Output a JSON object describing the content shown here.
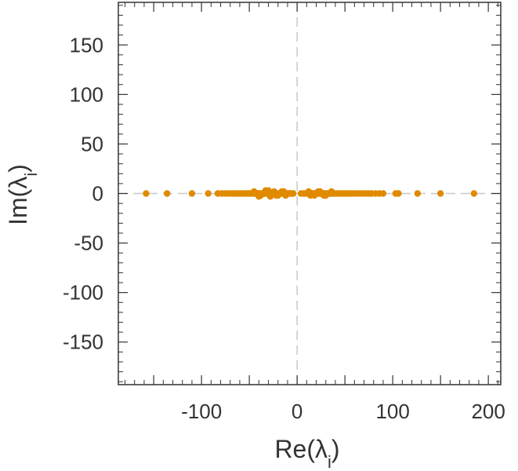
{
  "chart_data": {
    "type": "scatter",
    "xlabel": "Re(λi)",
    "ylabel": "Im(λi)",
    "xlim": [
      -187,
      213
    ],
    "ylim": [
      -193,
      193
    ],
    "xticks": [
      -100,
      0,
      100,
      200
    ],
    "yticks": [
      150,
      100,
      50,
      0,
      -50,
      -100,
      -150
    ],
    "x_tick_labels": [
      "-100",
      "0",
      "100",
      "200"
    ],
    "y_tick_labels": [
      "150",
      "100",
      "50",
      "0",
      "-50",
      "-100",
      "-150"
    ],
    "reference_lines": {
      "x_zero": "dashed vertical",
      "y_zero": "dashed horizontal"
    },
    "grid": false,
    "marker_color": "#E08A00",
    "series": [
      {
        "x": [
          -158,
          -136,
          -110,
          -93,
          -83,
          -79,
          -76,
          -73,
          -70,
          -67,
          -65,
          -63,
          -61,
          -59,
          -57,
          -55,
          -53,
          -51,
          -50,
          -48,
          -47,
          -45,
          -44,
          -42,
          -41,
          -40,
          -39,
          -38,
          -37,
          -36,
          -35,
          -34,
          -33,
          -32,
          -31,
          -30,
          -29,
          -28,
          -27,
          -26,
          -25,
          -24,
          -23,
          -22,
          -21,
          -20,
          -19,
          -18,
          -17,
          -16,
          -15,
          -14,
          -13,
          -12,
          -11,
          -10,
          -9,
          -8,
          -7,
          -6,
          -5,
          -4,
          -45,
          -38,
          -33,
          -28,
          -24,
          -20,
          -16,
          -12,
          -40,
          -30,
          -22,
          -14,
          4,
          6,
          8,
          10,
          11,
          12,
          13,
          14,
          15,
          16,
          17,
          18,
          19,
          20,
          21,
          22,
          23,
          24,
          25,
          26,
          27,
          28,
          29,
          30,
          31,
          32,
          33,
          34,
          35,
          36,
          37,
          38,
          40,
          42,
          44,
          46,
          48,
          50,
          52,
          54,
          56,
          58,
          60,
          63,
          66,
          69,
          72,
          75,
          78,
          82,
          86,
          90,
          103,
          106,
          126,
          150,
          185,
          12,
          18,
          24,
          30,
          36,
          14,
          22,
          28
        ],
        "y": [
          0,
          0,
          0,
          0,
          0,
          0,
          0,
          0,
          0,
          0,
          0,
          0,
          0,
          0,
          0,
          0,
          0,
          0,
          0,
          0,
          0,
          0,
          0,
          0,
          0,
          0,
          0,
          0,
          0,
          0,
          0,
          0,
          0,
          0,
          0,
          0,
          0,
          0,
          0,
          0,
          0,
          0,
          0,
          0,
          0,
          0,
          0,
          0,
          0,
          0,
          0,
          0,
          0,
          0,
          0,
          0,
          0,
          0,
          0,
          0,
          0,
          0,
          2,
          -2,
          3,
          -3,
          2,
          -2,
          2,
          -2,
          -3,
          3,
          -2,
          2,
          0,
          0,
          0,
          0,
          0,
          0,
          0,
          0,
          0,
          0,
          0,
          0,
          0,
          0,
          0,
          0,
          0,
          0,
          0,
          0,
          0,
          0,
          0,
          0,
          0,
          0,
          0,
          0,
          0,
          0,
          0,
          0,
          0,
          0,
          0,
          0,
          0,
          0,
          0,
          0,
          0,
          0,
          0,
          0,
          0,
          0,
          0,
          0,
          0,
          0,
          0,
          0,
          0,
          0,
          0,
          0,
          0,
          2,
          -2,
          2,
          -2,
          2,
          -2,
          2,
          -2
        ]
      }
    ]
  }
}
